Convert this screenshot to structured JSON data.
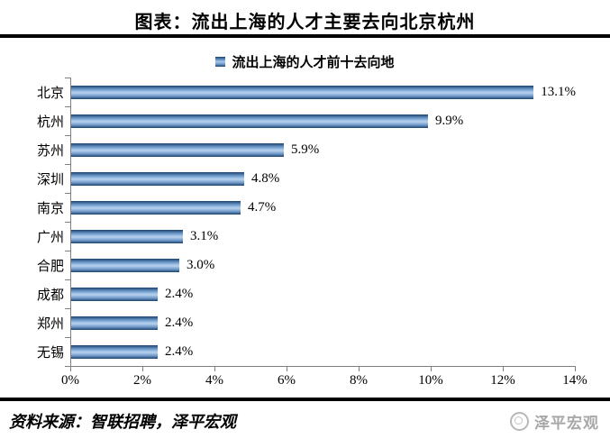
{
  "page": {
    "title": "图表：流出上海的人才主要去向北京杭州"
  },
  "legend": {
    "label": "流出上海的人才前十去向地"
  },
  "chart_data": {
    "type": "bar",
    "orientation": "horizontal",
    "title": "流出上海的人才前十去向地",
    "categories": [
      "北京",
      "杭州",
      "苏州",
      "深圳",
      "南京",
      "广州",
      "合肥",
      "成都",
      "郑州",
      "无锡"
    ],
    "values": [
      13.1,
      9.9,
      5.9,
      4.8,
      4.7,
      3.1,
      3.0,
      2.4,
      2.4,
      2.4
    ],
    "data_labels": [
      "13.1%",
      "9.9%",
      "5.9%",
      "4.8%",
      "4.7%",
      "3.1%",
      "3.0%",
      "2.4%",
      "2.4%",
      "2.4%"
    ],
    "x_tick_labels": [
      "0%",
      "2%",
      "4%",
      "6%",
      "8%",
      "10%",
      "12%",
      "14%"
    ],
    "xlim": [
      0,
      14
    ],
    "grid": false,
    "legend_position": "top",
    "bar_color": "#4f81bd"
  },
  "footer": {
    "source": "资料来源：智联招聘，泽平宏观",
    "watermark_label": "泽平宏观"
  },
  "colors": {
    "bar_main": "#4f81bd",
    "bar_edge": "#1c4269",
    "axis": "#808080",
    "rule": "#000000",
    "watermark": "#a8a8a8"
  }
}
